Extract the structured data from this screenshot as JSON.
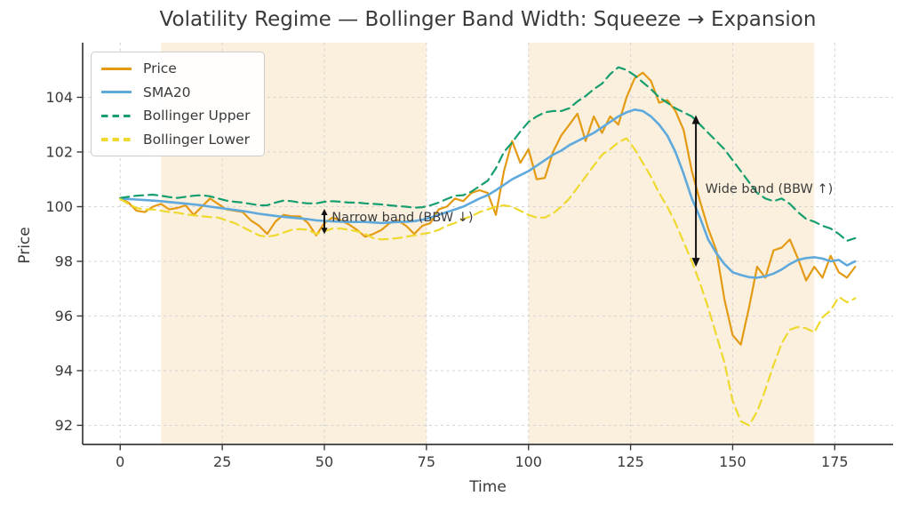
{
  "chart_data": {
    "type": "line",
    "title": "Volatility Regime — Bollinger Band Width: Squeeze → Expansion",
    "xlabel": "Time",
    "ylabel": "Price",
    "xlim": [
      -9.2,
      189.3
    ],
    "ylim": [
      91.3,
      106.0
    ],
    "xticks": [
      0,
      25,
      50,
      75,
      100,
      125,
      150,
      175
    ],
    "yticks": [
      92,
      94,
      96,
      98,
      100,
      102,
      104
    ],
    "grid": true,
    "legend_position": "upper-left",
    "x_start": 0,
    "x_step": 2,
    "series": [
      {
        "name": "Price",
        "color": "#E49B13",
        "style": "solid",
        "width": 2.2,
        "values": [
          100.3,
          100.15,
          99.85,
          99.8,
          100.0,
          100.1,
          99.9,
          99.95,
          100.05,
          99.7,
          100.0,
          100.3,
          100.1,
          99.9,
          99.85,
          99.8,
          99.5,
          99.3,
          99.0,
          99.45,
          99.7,
          99.65,
          99.65,
          99.4,
          98.95,
          99.4,
          99.6,
          99.5,
          99.35,
          99.15,
          98.9,
          99.0,
          99.15,
          99.4,
          99.5,
          99.3,
          99.0,
          99.3,
          99.4,
          99.9,
          100.0,
          100.3,
          100.2,
          100.5,
          100.6,
          100.5,
          99.7,
          101.3,
          102.4,
          101.6,
          102.1,
          101.0,
          101.05,
          102.0,
          102.6,
          103.0,
          103.4,
          102.4,
          103.3,
          102.7,
          103.3,
          103.0,
          104.0,
          104.7,
          104.9,
          104.6,
          103.8,
          103.9,
          103.5,
          102.8,
          101.3,
          100.2,
          99.2,
          98.4,
          96.6,
          95.3,
          94.95,
          96.3,
          97.8,
          97.4,
          98.4,
          98.5,
          98.8,
          98.1,
          97.3,
          97.8,
          97.4,
          98.2,
          97.6,
          97.4,
          97.8
        ]
      },
      {
        "name": "SMA20",
        "color": "#5FA9DC",
        "style": "solid",
        "width": 2.6,
        "values": [
          100.3,
          100.28,
          100.26,
          100.24,
          100.22,
          100.2,
          100.17,
          100.14,
          100.11,
          100.08,
          100.05,
          100.0,
          99.96,
          99.92,
          99.88,
          99.84,
          99.79,
          99.74,
          99.7,
          99.66,
          99.63,
          99.6,
          99.57,
          99.54,
          99.5,
          99.48,
          99.46,
          99.45,
          99.44,
          99.44,
          99.44,
          99.42,
          99.4,
          99.42,
          99.44,
          99.45,
          99.47,
          99.52,
          99.6,
          99.7,
          99.8,
          99.9,
          100.0,
          100.15,
          100.3,
          100.42,
          100.6,
          100.8,
          101.0,
          101.15,
          101.3,
          101.5,
          101.7,
          101.9,
          102.05,
          102.25,
          102.4,
          102.55,
          102.7,
          102.9,
          103.1,
          103.3,
          103.45,
          103.55,
          103.5,
          103.3,
          103.0,
          102.6,
          102.0,
          101.2,
          100.3,
          99.6,
          98.8,
          98.3,
          97.9,
          97.6,
          97.5,
          97.42,
          97.4,
          97.45,
          97.55,
          97.7,
          97.9,
          98.05,
          98.12,
          98.15,
          98.1,
          98.0,
          98.05,
          97.85,
          98.0
        ]
      },
      {
        "name": "Bollinger Upper",
        "color": "#179E6F",
        "style": "dashed",
        "width": 2.2,
        "values": [
          100.32,
          100.36,
          100.4,
          100.42,
          100.44,
          100.4,
          100.35,
          100.32,
          100.36,
          100.4,
          100.42,
          100.38,
          100.3,
          100.22,
          100.18,
          100.15,
          100.1,
          100.05,
          100.05,
          100.15,
          100.22,
          100.2,
          100.15,
          100.12,
          100.12,
          100.18,
          100.2,
          100.18,
          100.15,
          100.15,
          100.12,
          100.1,
          100.08,
          100.05,
          100.02,
          100.0,
          99.96,
          99.98,
          100.05,
          100.15,
          100.28,
          100.4,
          100.42,
          100.55,
          100.75,
          100.95,
          101.4,
          102.0,
          102.35,
          102.75,
          103.1,
          103.3,
          103.45,
          103.5,
          103.5,
          103.6,
          103.85,
          104.05,
          104.3,
          104.5,
          104.85,
          105.1,
          105.0,
          104.8,
          104.55,
          104.3,
          104.0,
          103.8,
          103.6,
          103.45,
          103.3,
          103.0,
          102.7,
          102.4,
          102.1,
          101.7,
          101.3,
          100.9,
          100.5,
          100.3,
          100.2,
          100.3,
          100.1,
          99.8,
          99.55,
          99.45,
          99.3,
          99.2,
          99.0,
          98.75,
          98.85
        ]
      },
      {
        "name": "Bollinger Lower",
        "color": "#EFD92E",
        "style": "dashed",
        "width": 2.2,
        "values": [
          100.28,
          100.1,
          99.95,
          99.9,
          99.9,
          99.85,
          99.8,
          99.78,
          99.72,
          99.68,
          99.65,
          99.62,
          99.6,
          99.5,
          99.4,
          99.25,
          99.1,
          98.95,
          98.9,
          98.95,
          99.05,
          99.15,
          99.18,
          99.15,
          99.0,
          99.1,
          99.2,
          99.2,
          99.15,
          99.1,
          99.0,
          98.85,
          98.8,
          98.82,
          98.85,
          98.9,
          98.95,
          99.0,
          99.05,
          99.15,
          99.3,
          99.4,
          99.55,
          99.65,
          99.8,
          99.9,
          100.0,
          100.05,
          100.0,
          99.85,
          99.7,
          99.6,
          99.6,
          99.75,
          100.0,
          100.3,
          100.7,
          101.1,
          101.5,
          101.9,
          102.1,
          102.35,
          102.5,
          102.1,
          101.6,
          101.1,
          100.5,
          100.0,
          99.4,
          98.7,
          98.0,
          97.2,
          96.3,
          95.3,
          94.3,
          92.9,
          92.15,
          92.0,
          92.5,
          93.3,
          94.2,
          95.0,
          95.5,
          95.6,
          95.55,
          95.4,
          95.95,
          96.2,
          96.7,
          96.5,
          96.65
        ]
      }
    ],
    "shaded_regions": [
      {
        "x0": 10,
        "x1": 75
      },
      {
        "x0": 100,
        "x1": 170
      }
    ],
    "region_color": "#FAF0DD",
    "grid_color": "#D4D4D4",
    "spine_color": "#3a3a3a",
    "annotation_color": "#111111",
    "annotations": [
      {
        "label": "Narrow band (BBW ↓)",
        "arrow_x": 50,
        "arrow_y0": 99.0,
        "arrow_y1": 99.92,
        "text_x": 51.8,
        "text_y": 99.62,
        "head": 7,
        "half_w": 3.6
      },
      {
        "label": "Wide band (BBW ↑)",
        "arrow_x": 141,
        "arrow_y0": 97.8,
        "arrow_y1": 103.35,
        "text_x": 143.3,
        "text_y": 100.67,
        "head": 10,
        "half_w": 4.5
      }
    ]
  }
}
